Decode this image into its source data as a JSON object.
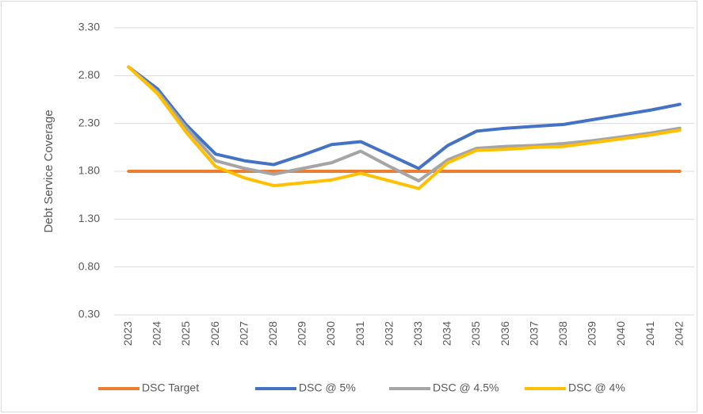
{
  "chart_data": {
    "type": "line",
    "y_label": "Debt Service Coverage",
    "categories": [
      "2023",
      "2024",
      "2025",
      "2026",
      "2027",
      "2028",
      "2029",
      "2030",
      "2031",
      "2032",
      "2033",
      "2034",
      "2035",
      "2036",
      "2037",
      "2038",
      "2039",
      "2040",
      "2041",
      "2042"
    ],
    "series": [
      {
        "name": "DSC Target",
        "color": "#ed7d31",
        "values": [
          1.8,
          1.8,
          1.8,
          1.8,
          1.8,
          1.8,
          1.8,
          1.8,
          1.8,
          1.8,
          1.8,
          1.8,
          1.8,
          1.8,
          1.8,
          1.8,
          1.8,
          1.8,
          1.8,
          1.8
        ]
      },
      {
        "name": "DSC @ 5%",
        "color": "#4472c4",
        "values": [
          2.89,
          2.66,
          2.28,
          1.98,
          1.91,
          1.87,
          1.97,
          2.08,
          2.11,
          1.97,
          1.83,
          2.07,
          2.22,
          2.25,
          2.27,
          2.29,
          2.34,
          2.39,
          2.44,
          2.5
        ]
      },
      {
        "name": "DSC @ 4.5%",
        "color": "#a5a5a5",
        "values": [
          2.89,
          2.63,
          2.25,
          1.91,
          1.83,
          1.77,
          1.83,
          1.89,
          2.01,
          1.85,
          1.7,
          1.92,
          2.04,
          2.06,
          2.07,
          2.09,
          2.12,
          2.16,
          2.2,
          2.25
        ]
      },
      {
        "name": "DSC @ 4%",
        "color": "#ffc000",
        "values": [
          2.89,
          2.61,
          2.2,
          1.85,
          1.73,
          1.65,
          1.68,
          1.71,
          1.78,
          1.7,
          1.62,
          1.89,
          2.02,
          2.03,
          2.05,
          2.06,
          2.1,
          2.14,
          2.18,
          2.23
        ]
      }
    ],
    "ylim": [
      0.3,
      3.3
    ],
    "yticks": [
      {
        "value": 0.3,
        "label": "0.30"
      },
      {
        "value": 0.8,
        "label": "0.80"
      },
      {
        "value": 1.3,
        "label": "1.30"
      },
      {
        "value": 1.8,
        "label": "1.80"
      },
      {
        "value": 2.3,
        "label": "2.30"
      },
      {
        "value": 2.8,
        "label": "2.80"
      },
      {
        "value": 3.3,
        "label": "3.30"
      }
    ],
    "grid": true,
    "legend": "bottom"
  }
}
